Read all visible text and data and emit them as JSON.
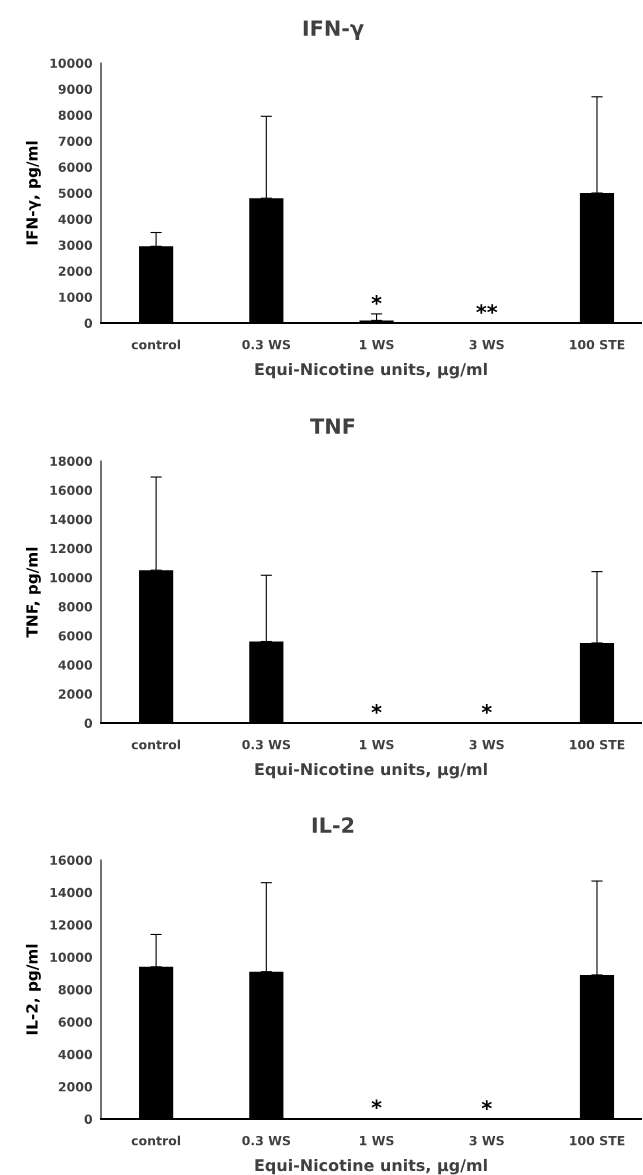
{
  "chart_data": [
    {
      "type": "bar",
      "title": "IFN-γ",
      "xlabel": "Equi-Nicotine units, µg/ml",
      "ylabel": "IFN-γ, pg/ml",
      "categories": [
        "control",
        "0.3 WS",
        "1 WS",
        "3 WS",
        "100 STE"
      ],
      "values": [
        2950,
        4800,
        100,
        0,
        5000
      ],
      "color": "#000000",
      "errors": [
        [
          2950,
          3480
        ],
        [
          4800,
          7950
        ],
        [
          100,
          350
        ],
        null,
        [
          5000,
          8700
        ]
      ],
      "ylim": [
        0,
        10000
      ],
      "yticks": [
        0,
        1000,
        2000,
        3000,
        4000,
        5000,
        6000,
        7000,
        8000,
        9000,
        10000
      ],
      "grid": false,
      "legend": false,
      "annotations": [
        "*",
        "**"
      ]
    },
    {
      "type": "bar",
      "title": "TNF",
      "xlabel": "Equi-Nicotine units, µg/ml",
      "ylabel": "TNF, pg/ml",
      "categories": [
        "control",
        "0.3 WS",
        "1 WS",
        "3 WS",
        "100 STE"
      ],
      "values": [
        10500,
        5600,
        0,
        0,
        5500
      ],
      "color": "#000000",
      "errors": [
        [
          10500,
          16900
        ],
        [
          5600,
          10150
        ],
        null,
        null,
        [
          5500,
          10400
        ]
      ],
      "ylim": [
        0,
        18000
      ],
      "yticks": [
        0,
        2000,
        4000,
        6000,
        8000,
        10000,
        12000,
        14000,
        16000,
        18000
      ],
      "grid": false,
      "legend": false,
      "annotations": [
        "*",
        "*"
      ]
    },
    {
      "type": "bar",
      "title": "IL-2",
      "xlabel": "Equi-Nicotine units, µg/ml",
      "ylabel": "IL-2, pg/ml",
      "categories": [
        "control",
        "0.3 WS",
        "1 WS",
        "3 WS",
        "100 STE"
      ],
      "values": [
        9400,
        9100,
        50,
        0,
        8900
      ],
      "color": "#000000",
      "errors": [
        [
          9400,
          11400
        ],
        [
          9100,
          14600
        ],
        null,
        null,
        [
          8900,
          14700
        ]
      ],
      "ylim": [
        0,
        16000
      ],
      "yticks": [
        0,
        2000,
        4000,
        6000,
        8000,
        10000,
        12000,
        14000,
        16000
      ],
      "grid": false,
      "legend": false,
      "annotations": [
        "*",
        "*"
      ]
    }
  ]
}
